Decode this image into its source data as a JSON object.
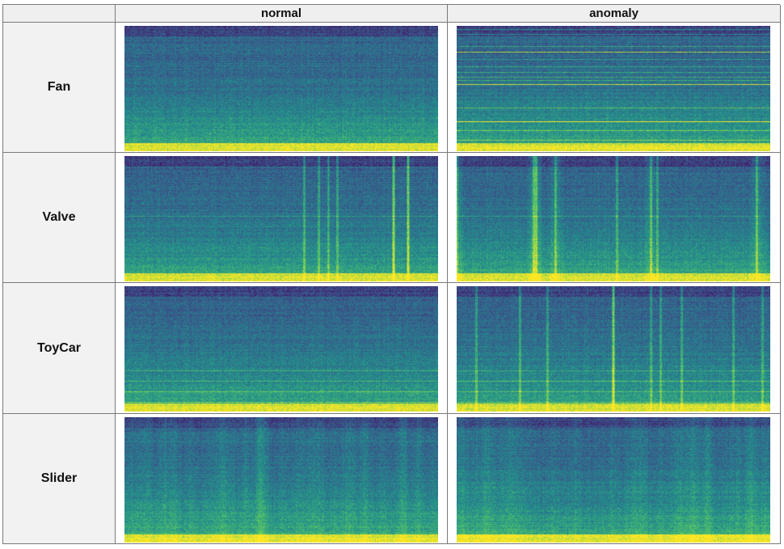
{
  "header": {
    "corner": "",
    "col_normal": "normal",
    "col_anomaly": "anomaly"
  },
  "rows": [
    {
      "label": "Fan"
    },
    {
      "label": "Valve"
    },
    {
      "label": "ToyCar"
    },
    {
      "label": "Slider"
    }
  ],
  "colormap": [
    "#440154",
    "#3b528b",
    "#21918c",
    "#5ec962",
    "#fde725"
  ]
}
